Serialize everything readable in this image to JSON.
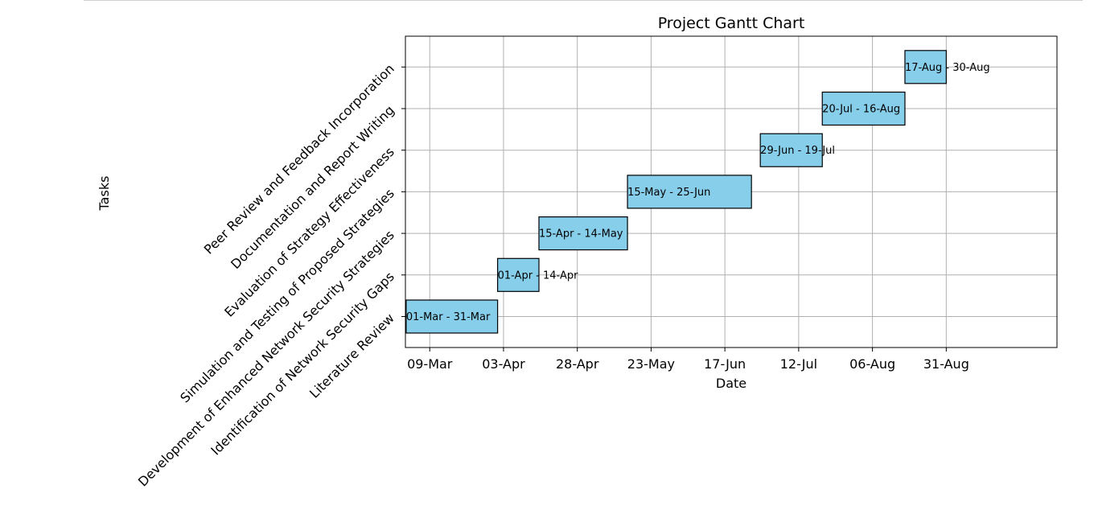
{
  "chart_data": {
    "type": "bar",
    "orientation": "horizontal-gantt",
    "title": "Project Gantt Chart",
    "xlabel": "Date",
    "ylabel": "Tasks",
    "x_ticks": [
      "09-Mar",
      "03-Apr",
      "28-Apr",
      "23-May",
      "17-Jun",
      "12-Jul",
      "06-Aug",
      "31-Aug"
    ],
    "grid": true,
    "bar_color": "#87ceeb",
    "edge_color": "#000000",
    "tasks": [
      {
        "name": "Literature Review",
        "start": "2024-03-01",
        "end": "2024-03-31",
        "label": "01-Mar - 31-Mar"
      },
      {
        "name": "Identification of Network Security Gaps",
        "start": "2024-04-01",
        "end": "2024-04-14",
        "label": "01-Apr - 14-Apr"
      },
      {
        "name": "Development of Enhanced Network Security Strategies",
        "start": "2024-04-15",
        "end": "2024-05-14",
        "label": "15-Apr - 14-May"
      },
      {
        "name": "Simulation and Testing of Proposed Strategies",
        "start": "2024-05-15",
        "end": "2024-06-25",
        "label": "15-May - 25-Jun"
      },
      {
        "name": "Evaluation of Strategy Effectiveness",
        "start": "2024-06-29",
        "end": "2024-07-19",
        "label": "29-Jun - 19-Jul"
      },
      {
        "name": "Documentation and Report Writing",
        "start": "2024-07-20",
        "end": "2024-08-16",
        "label": "20-Jul - 16-Aug"
      },
      {
        "name": "Peer Review and Feedback Incorporation",
        "start": "2024-08-17",
        "end": "2024-08-30",
        "label": "17-Aug - 30-Aug"
      }
    ]
  }
}
